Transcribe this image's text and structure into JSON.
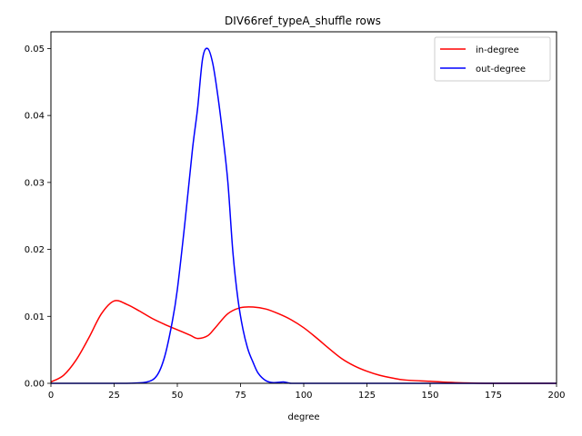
{
  "chart_data": {
    "type": "line",
    "title": "DIV66ref_typeA_shuffle rows",
    "xlabel": "degree",
    "ylabel": "",
    "xlim": [
      0,
      200
    ],
    "ylim": [
      0,
      0.0525
    ],
    "x_ticks": [
      0,
      25,
      50,
      75,
      100,
      125,
      150,
      175,
      200
    ],
    "x_tick_labels": [
      "0",
      "25",
      "50",
      "75",
      "100",
      "125",
      "150",
      "175",
      "200"
    ],
    "y_ticks": [
      0.0,
      0.01,
      0.02,
      0.03,
      0.04,
      0.05
    ],
    "y_tick_labels": [
      "0.00",
      "0.01",
      "0.02",
      "0.03",
      "0.04",
      "0.05"
    ],
    "grid": false,
    "legend_position": "top-right",
    "series": [
      {
        "name": "in-degree",
        "color": "#ff0000",
        "x": [
          0,
          5,
          10,
          15,
          20,
          25,
          30,
          35,
          40,
          45,
          50,
          55,
          58,
          62,
          65,
          70,
          75,
          80,
          85,
          90,
          95,
          100,
          105,
          110,
          115,
          120,
          125,
          130,
          135,
          140,
          150,
          160,
          175,
          200
        ],
        "y": [
          0.0002,
          0.0012,
          0.0035,
          0.0068,
          0.0104,
          0.0123,
          0.0118,
          0.0108,
          0.0097,
          0.0088,
          0.008,
          0.0072,
          0.0067,
          0.0071,
          0.0083,
          0.0104,
          0.0113,
          0.0114,
          0.0111,
          0.0104,
          0.0095,
          0.0083,
          0.0068,
          0.0052,
          0.0037,
          0.0026,
          0.0018,
          0.0012,
          0.0008,
          0.0005,
          0.0003,
          0.0001,
          0.0,
          0.0
        ]
      },
      {
        "name": "out-degree",
        "color": "#0000ff",
        "x": [
          0,
          20,
          30,
          38,
          42,
          45,
          48,
          50,
          53,
          56,
          58,
          60,
          62,
          64,
          66,
          68,
          70,
          72,
          74,
          76,
          78,
          80,
          82,
          85,
          88,
          92,
          95,
          100,
          150,
          200
        ],
        "y": [
          0.0,
          0.0,
          0.0,
          0.0002,
          0.0012,
          0.004,
          0.0092,
          0.014,
          0.024,
          0.035,
          0.041,
          0.0485,
          0.05,
          0.0478,
          0.043,
          0.037,
          0.03,
          0.0195,
          0.0125,
          0.008,
          0.005,
          0.0031,
          0.0015,
          0.0004,
          0.0001,
          0.0002,
          0.0,
          0.0,
          0.0,
          0.0
        ]
      }
    ]
  }
}
